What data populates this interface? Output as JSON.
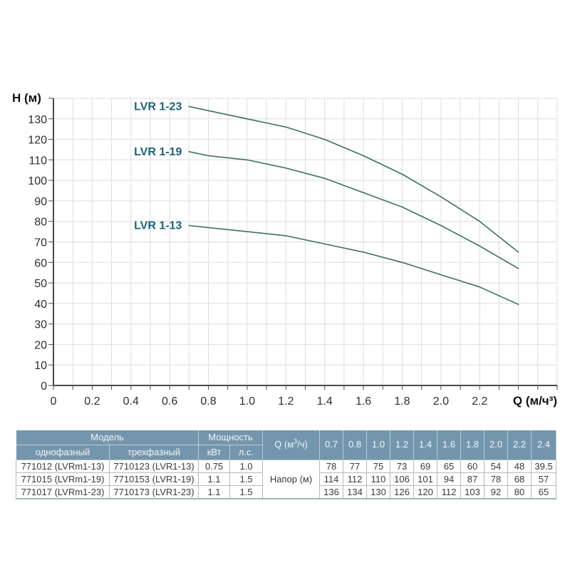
{
  "chart_data": {
    "type": "line",
    "title": "",
    "xlabel": "Q (м/ч³)",
    "ylabel": "H (м)",
    "x": [
      0.7,
      0.8,
      1.0,
      1.2,
      1.4,
      1.6,
      1.8,
      2.0,
      2.2,
      2.4
    ],
    "series": [
      {
        "name": "LVR 1-23",
        "values": [
          136,
          134,
          130,
          126,
          120,
          112,
          103,
          92,
          80,
          65
        ]
      },
      {
        "name": "LVR 1-19",
        "values": [
          114,
          112,
          110,
          106,
          101,
          94,
          87,
          78,
          68,
          57
        ]
      },
      {
        "name": "LVR 1-13",
        "values": [
          78,
          77,
          75,
          73,
          69,
          65,
          60,
          54,
          48,
          39.5
        ]
      }
    ],
    "xlim": [
      0,
      2.6
    ],
    "ylim": [
      0,
      140
    ],
    "x_grid_step": 0.1,
    "y_grid_step": 10,
    "grid": true,
    "legend_position": "inline-left-of-curves",
    "x_tick_labels": [
      "0",
      "0.2",
      "0.4",
      "0.6",
      "0.8",
      "1.0",
      "1.2",
      "1.4",
      "1.6",
      "1.8",
      "2.0",
      "2.2"
    ],
    "y_tick_labels": [
      "0",
      "10",
      "20",
      "30",
      "40",
      "50",
      "60",
      "70",
      "80",
      "90",
      "100",
      "110",
      "120",
      "130"
    ]
  },
  "colors": {
    "curve": "#3e6f63",
    "series_label": "#1d6376",
    "grid": "#dbdee1",
    "axis": "#4a4a4a",
    "tick_text": "#2e2e2e",
    "axis_title_text": "#111111",
    "table_header_bg": "#7496ac",
    "table_header_text": "#f2f7fa",
    "table_border": "#b2bbc0",
    "table_text": "#3a3a3a"
  },
  "table": {
    "headers": {
      "model_group": "Модель",
      "power_group": "Мощность",
      "flow_header_html": "Q (м<sup>3</sup>/ч)",
      "flow_header_text": "Q (м³/ч)",
      "model_single": "однофазный",
      "model_three": "трехфазный",
      "power_kw": "кВт",
      "power_hp": "л.с.",
      "flow_columns": [
        "0.7",
        "0.8",
        "1.0",
        "1.2",
        "1.4",
        "1.6",
        "1.8",
        "2.0",
        "2.2",
        "2.4"
      ],
      "head_row_label": "Напор (м)"
    },
    "rows": [
      {
        "single_phase": "771012 (LVRm1-13)",
        "three_phase": "7710123 (LVR1-13)",
        "kw": "0.75",
        "hp": "1.0",
        "head_m": [
          "78",
          "77",
          "75",
          "73",
          "69",
          "65",
          "60",
          "54",
          "48",
          "39.5"
        ]
      },
      {
        "single_phase": "771015 (LVRm1-19)",
        "three_phase": "7710153 (LVR1-19)",
        "kw": "1.1",
        "hp": "1.5",
        "head_m": [
          "114",
          "112",
          "110",
          "106",
          "101",
          "94",
          "87",
          "78",
          "68",
          "57"
        ]
      },
      {
        "single_phase": "771017 (LVRm1-23)",
        "three_phase": "7710173 (LVR1-23)",
        "kw": "1.1",
        "hp": "1.5",
        "head_m": [
          "136",
          "134",
          "130",
          "126",
          "120",
          "112",
          "103",
          "92",
          "80",
          "65"
        ]
      }
    ]
  }
}
